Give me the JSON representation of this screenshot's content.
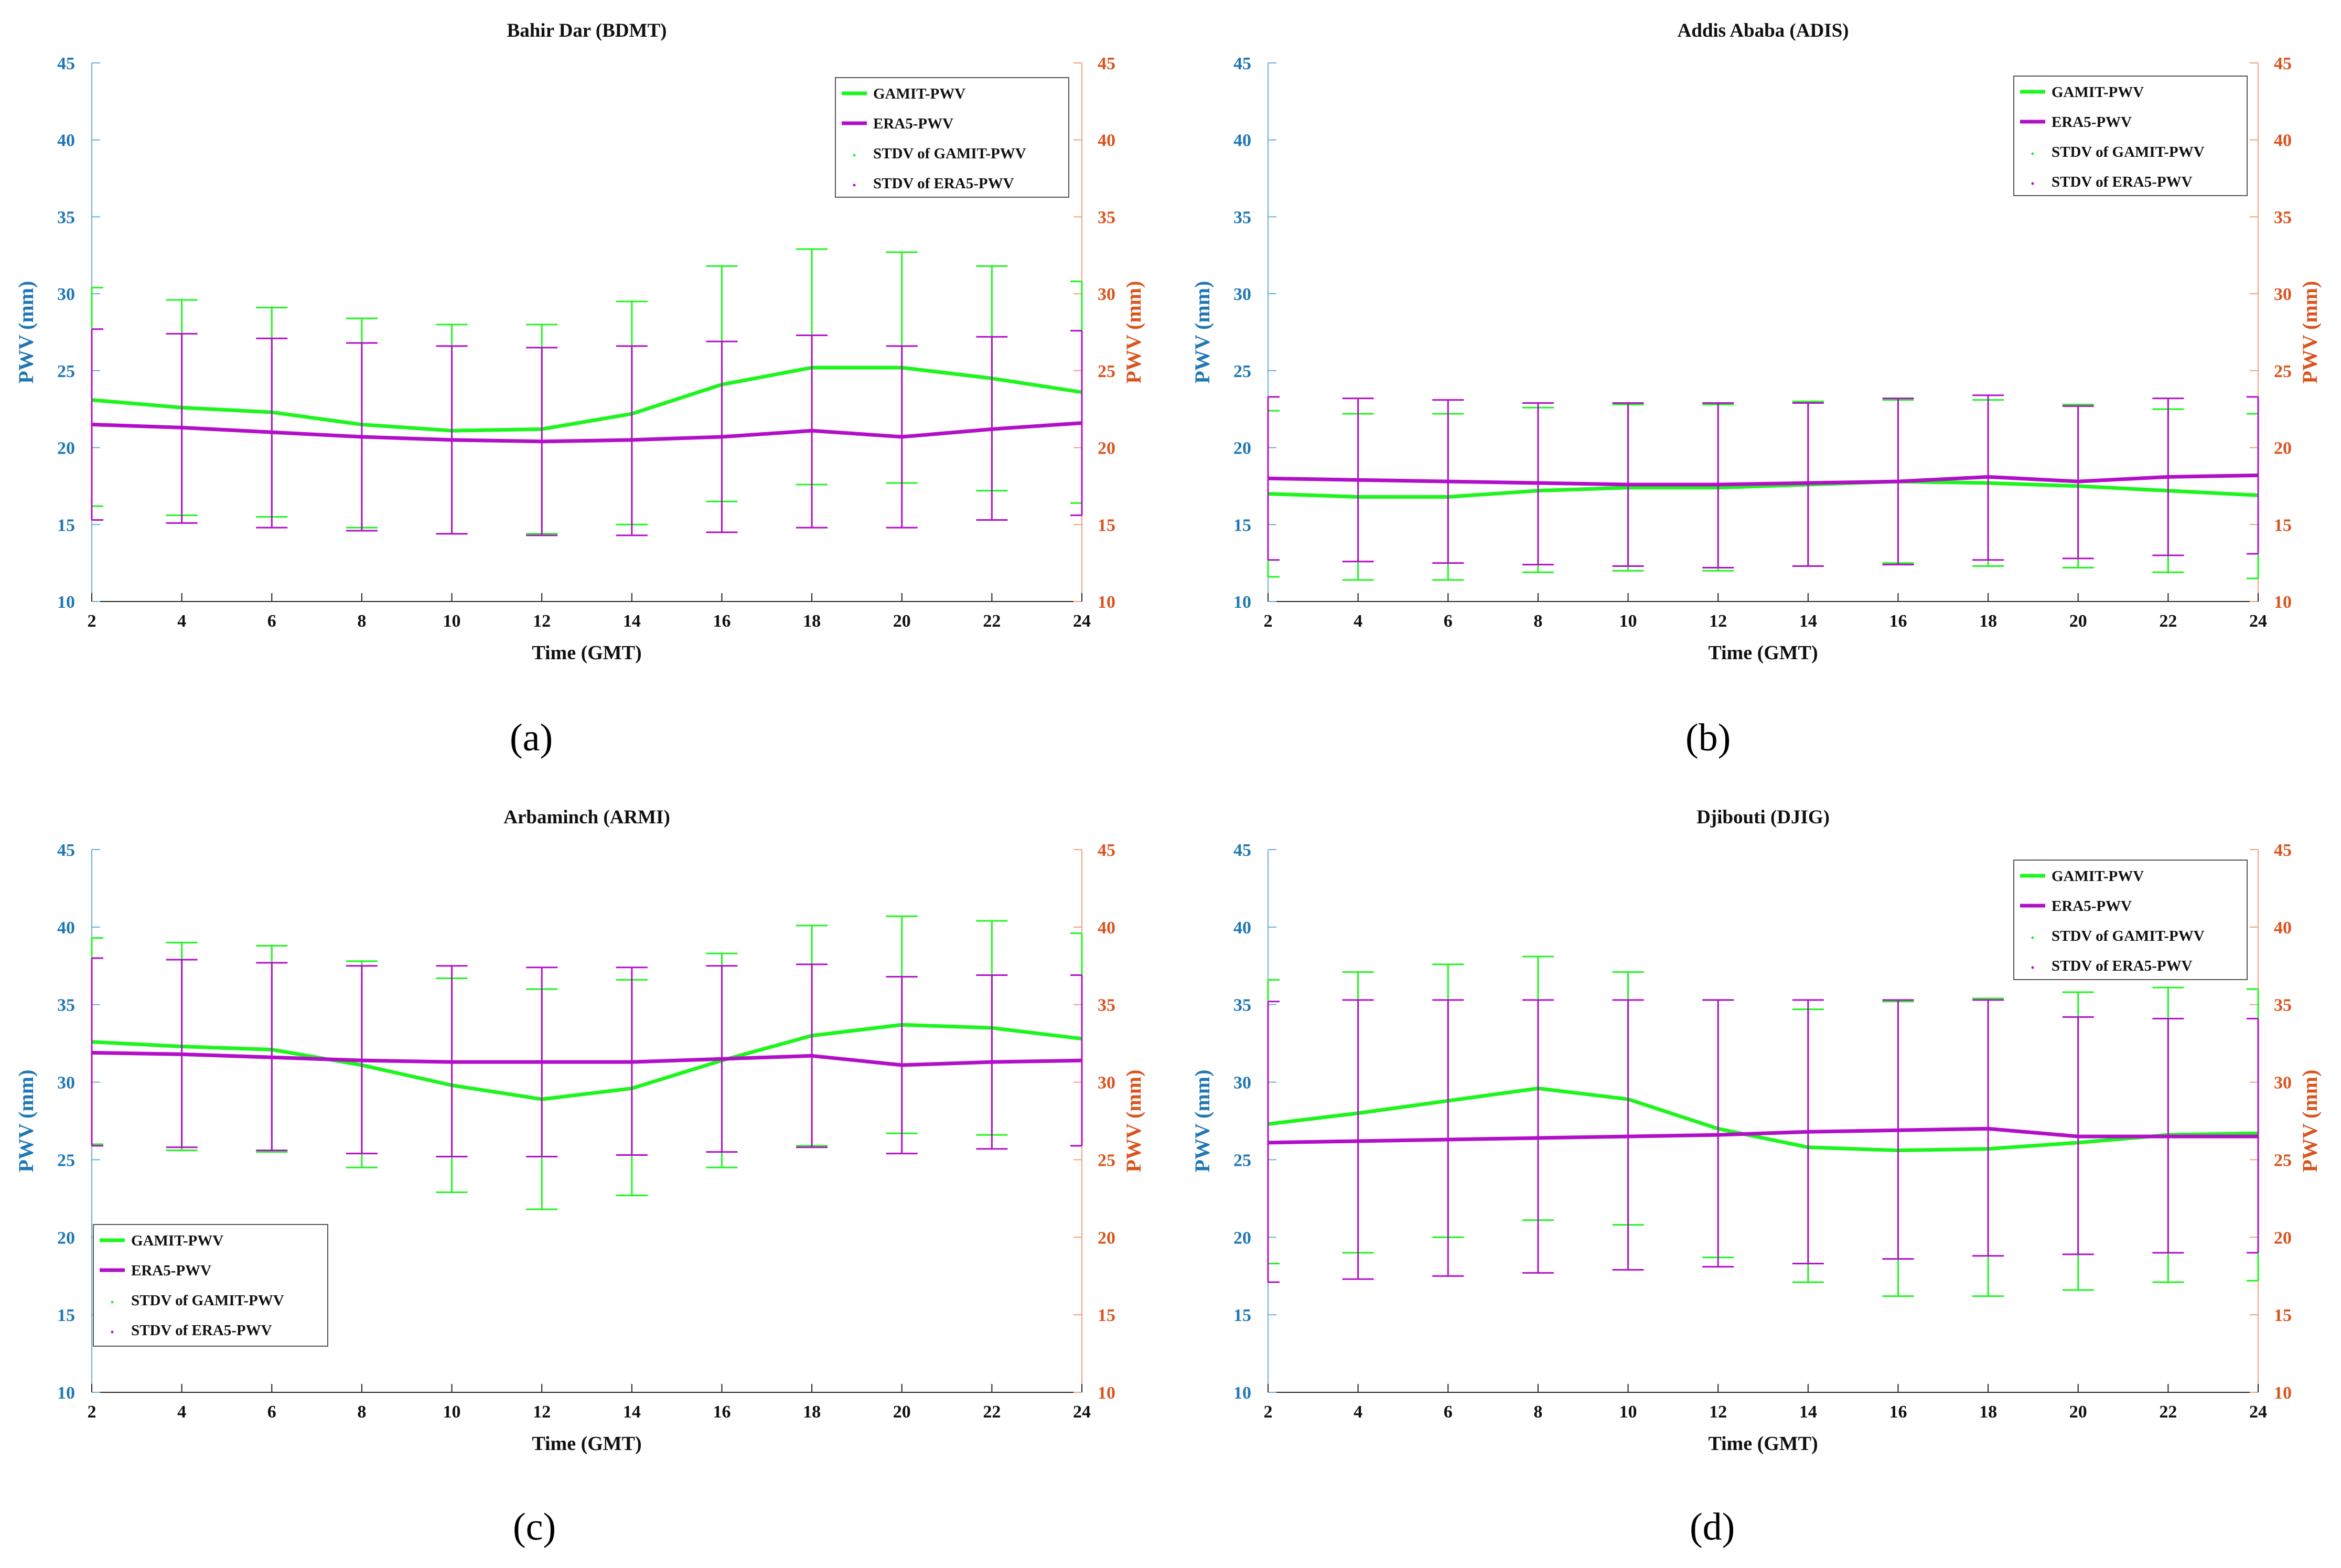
{
  "colors": {
    "gamit": "#1ef51e",
    "era5": "#b20fc9",
    "left_axis": "#1f77b4",
    "right_axis": "#d9541e",
    "text": "#111111"
  },
  "captions": [
    "(a)",
    "(b)",
    "(c)",
    "(d)"
  ],
  "chart_data": [
    {
      "type": "line",
      "title": "Bahir Dar (BDMT)",
      "xlabel": "Time (GMT)",
      "ylabel": "PWV (mm)",
      "ylabel_right": "PWV (mm)",
      "xlim": [
        2,
        24
      ],
      "ylim": [
        10,
        45
      ],
      "xticks": [
        2,
        4,
        6,
        8,
        10,
        12,
        14,
        16,
        18,
        20,
        22,
        24
      ],
      "yticks": [
        10,
        15,
        20,
        25,
        30,
        35,
        40,
        45
      ],
      "legend_position": "top-right",
      "legend": [
        "GAMIT-PWV",
        "ERA5-PWV",
        "STDV of GAMIT-PWV",
        "STDV of ERA5-PWV"
      ],
      "x": [
        2,
        4,
        6,
        8,
        10,
        12,
        14,
        16,
        18,
        20,
        22,
        24
      ],
      "series": [
        {
          "name": "GAMIT-PWV",
          "values": [
            23.1,
            22.6,
            22.3,
            21.5,
            21.1,
            21.2,
            22.2,
            24.1,
            25.2,
            25.2,
            24.5,
            23.6
          ],
          "err_low": [
            16.2,
            15.6,
            15.5,
            14.8,
            14.4,
            14.4,
            15.0,
            16.5,
            17.6,
            17.7,
            17.2,
            16.4
          ],
          "err_high": [
            30.4,
            29.6,
            29.1,
            28.4,
            28.0,
            28.0,
            29.5,
            31.8,
            32.9,
            32.7,
            31.8,
            30.8
          ]
        },
        {
          "name": "ERA5-PWV",
          "values": [
            21.5,
            21.3,
            21.0,
            20.7,
            20.5,
            20.4,
            20.5,
            20.7,
            21.1,
            20.7,
            21.2,
            21.6
          ],
          "err_low": [
            15.3,
            15.1,
            14.8,
            14.6,
            14.4,
            14.3,
            14.3,
            14.5,
            14.8,
            14.8,
            15.3,
            15.6
          ],
          "err_high": [
            27.7,
            27.4,
            27.1,
            26.8,
            26.6,
            26.5,
            26.6,
            26.9,
            27.3,
            26.6,
            27.2,
            27.6
          ]
        }
      ]
    },
    {
      "type": "line",
      "title": "Addis Ababa (ADIS)",
      "xlabel": "Time (GMT)",
      "ylabel": "PWV (mm)",
      "ylabel_right": "PWV (mm)",
      "xlim": [
        2,
        24
      ],
      "ylim": [
        10,
        45
      ],
      "xticks": [
        2,
        4,
        6,
        8,
        10,
        12,
        14,
        16,
        18,
        20,
        22,
        24
      ],
      "yticks": [
        10,
        15,
        20,
        25,
        30,
        35,
        40,
        45
      ],
      "legend_position": "top-right",
      "legend": [
        "GAMIT-PWV",
        "ERA5-PWV",
        "STDV of GAMIT-PWV",
        "STDV of ERA5-PWV"
      ],
      "x": [
        2,
        4,
        6,
        8,
        10,
        12,
        14,
        16,
        18,
        20,
        22,
        24
      ],
      "series": [
        {
          "name": "GAMIT-PWV",
          "values": [
            17.0,
            16.8,
            16.8,
            17.2,
            17.4,
            17.4,
            17.6,
            17.8,
            17.7,
            17.5,
            17.2,
            16.9
          ],
          "err_low": [
            11.6,
            11.4,
            11.4,
            11.9,
            12.0,
            12.0,
            12.3,
            12.5,
            12.3,
            12.2,
            11.9,
            11.5
          ],
          "err_high": [
            22.4,
            22.2,
            22.2,
            22.6,
            22.8,
            22.8,
            23.0,
            23.1,
            23.1,
            22.8,
            22.5,
            22.2
          ]
        },
        {
          "name": "ERA5-PWV",
          "values": [
            18.0,
            17.9,
            17.8,
            17.7,
            17.6,
            17.6,
            17.7,
            17.8,
            18.1,
            17.8,
            18.1,
            18.2
          ],
          "err_low": [
            12.7,
            12.6,
            12.5,
            12.4,
            12.3,
            12.2,
            12.3,
            12.4,
            12.7,
            12.8,
            13.0,
            13.1
          ],
          "err_high": [
            23.3,
            23.2,
            23.1,
            22.9,
            22.9,
            22.9,
            22.9,
            23.2,
            23.4,
            22.7,
            23.2,
            23.3
          ]
        }
      ]
    },
    {
      "type": "line",
      "title": "Arbaminch (ARMI)",
      "xlabel": "Time (GMT)",
      "ylabel": "PWV (mm)",
      "ylabel_right": "PWV (mm)",
      "xlim": [
        2,
        24
      ],
      "ylim": [
        10,
        45
      ],
      "xticks": [
        2,
        4,
        6,
        8,
        10,
        12,
        14,
        16,
        18,
        20,
        22,
        24
      ],
      "yticks": [
        10,
        15,
        20,
        25,
        30,
        35,
        40,
        45
      ],
      "legend_position": "bottom-left",
      "legend": [
        "GAMIT-PWV",
        "ERA5-PWV",
        "STDV of GAMIT-PWV",
        "STDV of ERA5-PWV"
      ],
      "x": [
        2,
        4,
        6,
        8,
        10,
        12,
        14,
        16,
        18,
        20,
        22,
        24
      ],
      "series": [
        {
          "name": "GAMIT-PWV",
          "values": [
            32.6,
            32.3,
            32.1,
            31.1,
            29.8,
            28.9,
            29.6,
            31.4,
            33.0,
            33.7,
            33.5,
            32.8
          ],
          "err_low": [
            26.0,
            25.6,
            25.5,
            24.5,
            22.9,
            21.8,
            22.7,
            24.5,
            25.9,
            26.7,
            26.6,
            25.9
          ],
          "err_high": [
            39.3,
            39.0,
            38.8,
            37.8,
            36.7,
            36.0,
            36.6,
            38.3,
            40.1,
            40.7,
            40.4,
            39.6
          ]
        },
        {
          "name": "ERA5-PWV",
          "values": [
            31.9,
            31.8,
            31.6,
            31.4,
            31.3,
            31.3,
            31.3,
            31.5,
            31.7,
            31.1,
            31.3,
            31.4
          ],
          "err_low": [
            25.9,
            25.8,
            25.6,
            25.4,
            25.2,
            25.2,
            25.3,
            25.5,
            25.8,
            25.4,
            25.7,
            25.9
          ],
          "err_high": [
            38.0,
            37.9,
            37.7,
            37.5,
            37.5,
            37.4,
            37.4,
            37.5,
            37.6,
            36.8,
            36.9,
            36.9
          ]
        }
      ]
    },
    {
      "type": "line",
      "title": "Djibouti (DJIG)",
      "xlabel": "Time (GMT)",
      "ylabel": "PWV (mm)",
      "ylabel_right": "PWV (mm)",
      "xlim": [
        2,
        24
      ],
      "ylim": [
        10,
        45
      ],
      "xticks": [
        2,
        4,
        6,
        8,
        10,
        12,
        14,
        16,
        18,
        20,
        22,
        24
      ],
      "yticks": [
        10,
        15,
        20,
        25,
        30,
        35,
        40,
        45
      ],
      "legend_position": "top-right",
      "legend": [
        "GAMIT-PWV",
        "ERA5-PWV",
        "STDV of GAMIT-PWV",
        "STDV of ERA5-PWV"
      ],
      "x": [
        2,
        4,
        6,
        8,
        10,
        12,
        14,
        16,
        18,
        20,
        22,
        24
      ],
      "series": [
        {
          "name": "GAMIT-PWV",
          "values": [
            27.3,
            28.0,
            28.8,
            29.6,
            28.9,
            27.0,
            25.8,
            25.6,
            25.7,
            26.1,
            26.6,
            26.7
          ],
          "err_low": [
            18.3,
            19.0,
            20.0,
            21.1,
            20.8,
            18.7,
            17.1,
            16.2,
            16.2,
            16.6,
            17.1,
            17.2
          ],
          "err_high": [
            36.6,
            37.1,
            37.6,
            38.1,
            37.1,
            35.3,
            34.7,
            35.2,
            35.4,
            35.8,
            36.1,
            36.0
          ]
        },
        {
          "name": "ERA5-PWV",
          "values": [
            26.1,
            26.2,
            26.3,
            26.4,
            26.5,
            26.6,
            26.8,
            26.9,
            27.0,
            26.5,
            26.5,
            26.5
          ],
          "err_low": [
            17.1,
            17.3,
            17.5,
            17.7,
            17.9,
            18.1,
            18.3,
            18.6,
            18.8,
            18.9,
            19.0,
            19.0
          ],
          "err_high": [
            35.2,
            35.3,
            35.3,
            35.3,
            35.3,
            35.3,
            35.3,
            35.3,
            35.3,
            34.2,
            34.1,
            34.1
          ]
        }
      ]
    }
  ]
}
